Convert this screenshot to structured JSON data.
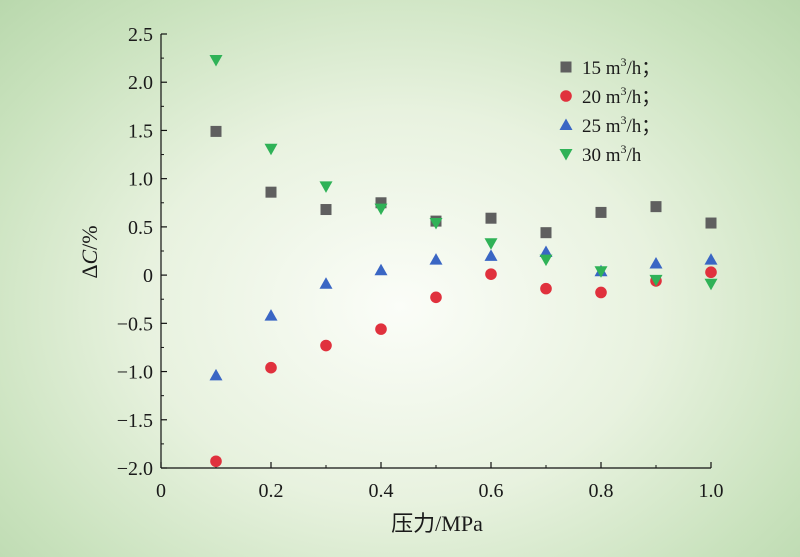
{
  "chart_data": {
    "type": "scatter",
    "xlabel": "压力/MPa",
    "ylabel": {
      "delta": "Δ",
      "var": "C",
      "unit": "/%"
    },
    "xlim": [
      0,
      1.0
    ],
    "ylim": [
      -2.0,
      2.5
    ],
    "x_ticks": [
      "0",
      "0.2",
      "0.4",
      "0.6",
      "0.8",
      "1.0"
    ],
    "x_tick_values": [
      0,
      0.2,
      0.4,
      0.6,
      0.8,
      1.0
    ],
    "y_ticks": [
      "2.5",
      "2.0",
      "1.5",
      "1.0",
      "0.5",
      "0",
      "−0.5",
      "−1.0",
      "−1.5",
      "−2.0"
    ],
    "y_tick_values": [
      2.5,
      2.0,
      1.5,
      1.0,
      0.5,
      0,
      -0.5,
      -1.0,
      -1.5,
      -2.0
    ],
    "x": [
      0.1,
      0.2,
      0.3,
      0.4,
      0.5,
      0.6,
      0.7,
      0.8,
      0.9,
      1.0
    ],
    "series": [
      {
        "name": "15 m³/h；",
        "label_main": "15 m",
        "label_sup": "3",
        "label_tail": "/h；",
        "marker": "square",
        "color": "#5f5f5f",
        "values": [
          1.49,
          0.86,
          0.68,
          0.75,
          0.56,
          0.59,
          0.44,
          0.65,
          0.71,
          0.54
        ]
      },
      {
        "name": "20 m³/h；",
        "label_main": "20 m",
        "label_sup": "3",
        "label_tail": "/h；",
        "marker": "circle",
        "color": "#e0313d",
        "values": [
          -1.93,
          -0.96,
          -0.73,
          -0.56,
          -0.23,
          0.01,
          -0.14,
          -0.18,
          -0.06,
          0.03
        ]
      },
      {
        "name": "25 m³/h；",
        "label_main": "25 m",
        "label_sup": "3",
        "label_tail": "/h；",
        "marker": "triangle-up",
        "color": "#3a66c4",
        "values": [
          -1.04,
          -0.42,
          -0.09,
          0.05,
          0.16,
          0.2,
          0.24,
          0.04,
          0.12,
          0.16
        ]
      },
      {
        "name": "30 m³/h",
        "label_main": "30 m",
        "label_sup": "3",
        "label_tail": "/h",
        "marker": "triangle-down",
        "color": "#2fb257",
        "values": [
          2.23,
          1.31,
          0.92,
          0.69,
          0.54,
          0.33,
          0.16,
          0.04,
          -0.05,
          -0.09
        ]
      }
    ],
    "legend_position": "top-right"
  }
}
